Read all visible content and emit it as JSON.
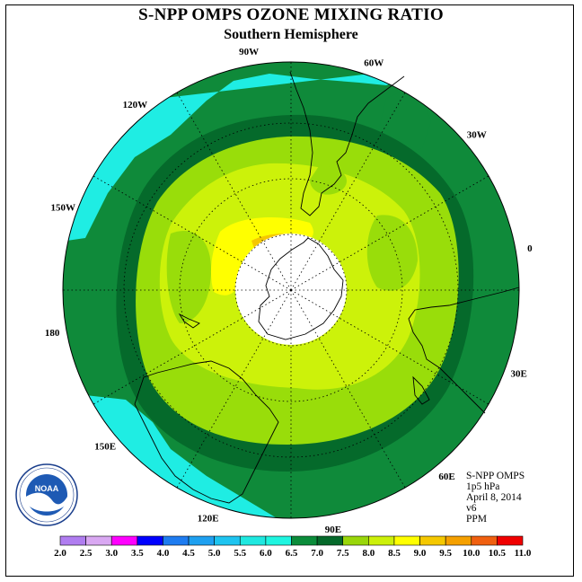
{
  "title": "S-NPP OMPS OZONE MIXING RATIO",
  "subtitle": "Southern Hemisphere",
  "longitude_labels": [
    {
      "text": "90W",
      "deg": 90
    },
    {
      "text": "60W",
      "deg": 60
    },
    {
      "text": "30W",
      "deg": 30
    },
    {
      "text": "0",
      "deg": 0
    },
    {
      "text": "30E",
      "deg": -30
    },
    {
      "text": "60E",
      "deg": -60
    },
    {
      "text": "90E",
      "deg": -90
    },
    {
      "text": "120E",
      "deg": -120
    },
    {
      "text": "150E",
      "deg": -150
    },
    {
      "text": "180",
      "deg": 180
    },
    {
      "text": "150W",
      "deg": 150
    },
    {
      "text": "120W",
      "deg": 120
    }
  ],
  "info": {
    "line1": "S-NPP OMPS",
    "line2": "1p5 hPa",
    "line3": "April 8, 2014",
    "line4": "v6",
    "line5": "PPM"
  },
  "logo": {
    "text": "NOAA"
  },
  "colorbar": {
    "ticks": [
      "2.0",
      "2.5",
      "3.0",
      "3.5",
      "4.0",
      "4.5",
      "5.0",
      "5.5",
      "6.0",
      "6.5",
      "7.0",
      "7.5",
      "8.0",
      "8.5",
      "9.0",
      "9.5",
      "10.0",
      "10.5",
      "11.0"
    ],
    "colors": [
      "#b07df0",
      "#d9a8f2",
      "#ff00ff",
      "#0000ff",
      "#1e7cf0",
      "#1ea0f0",
      "#1ec4f0",
      "#1fe8e0",
      "#1ff5e0",
      "#0b8c3a",
      "#05692a",
      "#99d60a",
      "#ccf00a",
      "#ffff00",
      "#f5c800",
      "#f5a000",
      "#f06010",
      "#f00000",
      "#8c5a3c"
    ]
  },
  "map_colors": {
    "cyan": "#1fede3",
    "green_outer": "#0f8a3a",
    "green_dark": "#056a2b",
    "yellowgreen": "#99dd0a",
    "lime": "#ccf20a",
    "yellow": "#ffff00",
    "orange": "#f5c800",
    "pole": "#ffffff"
  }
}
